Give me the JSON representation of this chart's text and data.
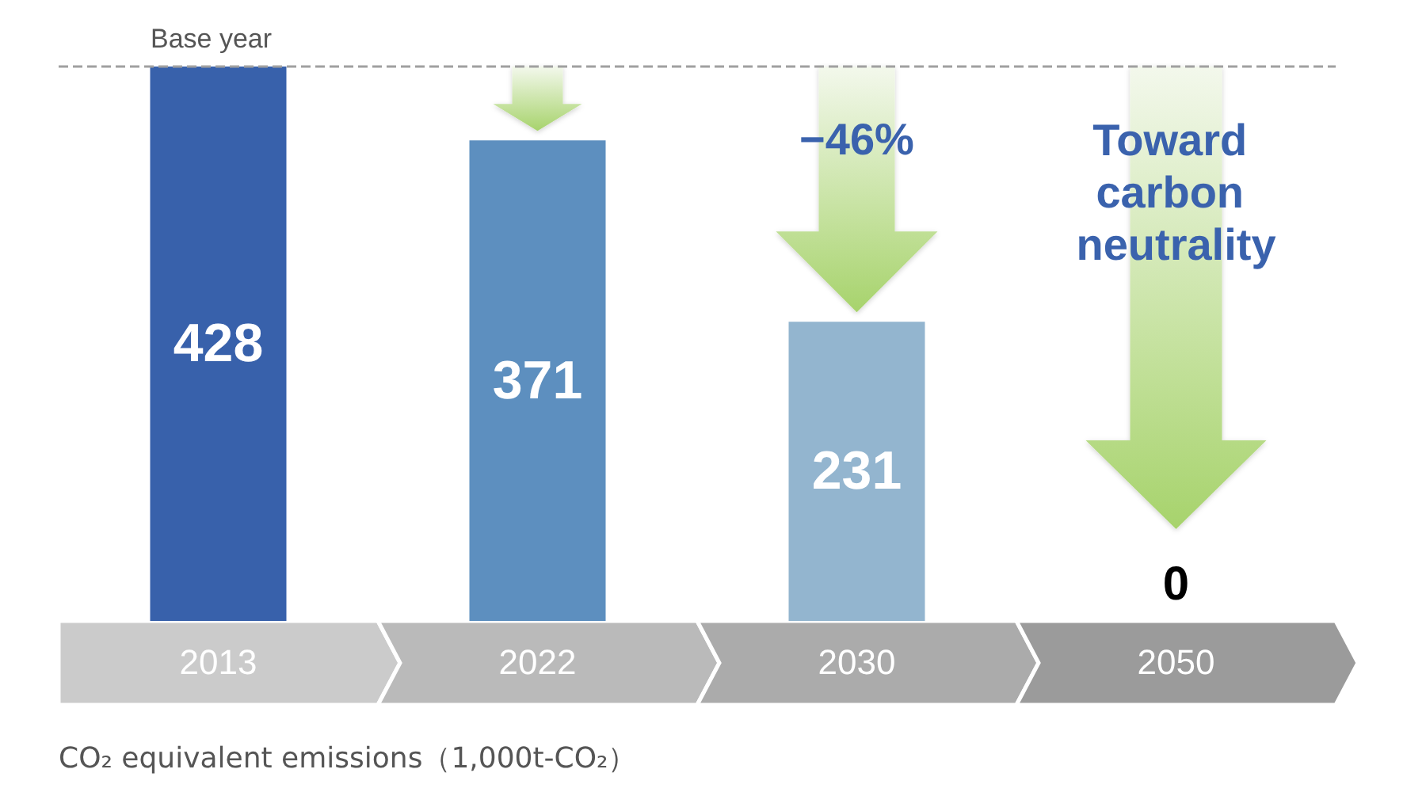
{
  "chart_data": {
    "type": "bar",
    "categories": [
      "2013",
      "2022",
      "2030",
      "2050"
    ],
    "values": [
      428,
      371,
      231,
      0
    ],
    "colors": [
      "#3861ab",
      "#5d8fbf",
      "#93b5cf",
      "#93b5cf"
    ],
    "data_labels": true,
    "grid": false,
    "tick_labels": "x",
    "ref_lines": [
      {
        "axis": "y",
        "value": 428,
        "label": "Base year",
        "color": "#a0a0a0",
        "line_style": "dashed"
      }
    ],
    "annotations": [
      "−46%",
      "Toward carbon neutrality",
      "CO₂ equivalent emissions（1,000t-CO₂）"
    ]
  }
}
